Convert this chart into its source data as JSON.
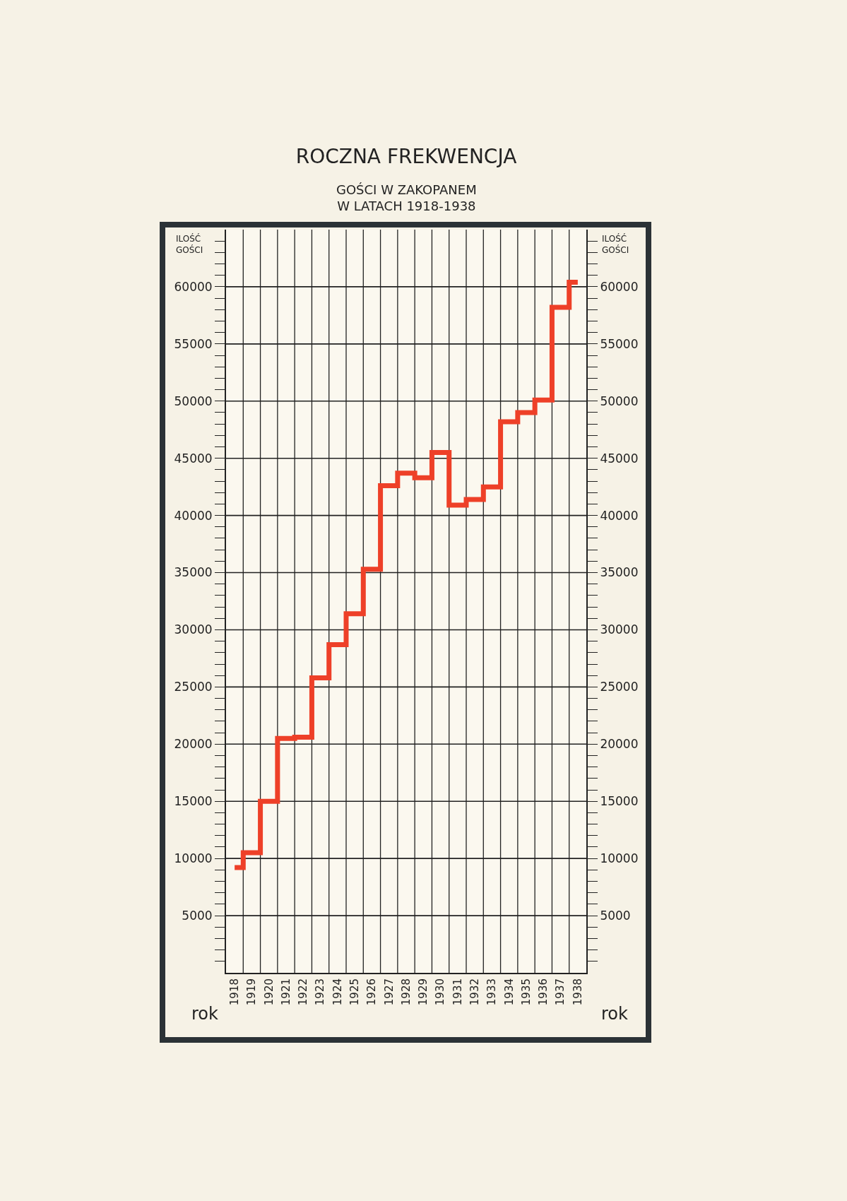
{
  "chart_data": {
    "type": "step",
    "title": "ROCZNA FREKWENCJA",
    "subtitle": "GOŚCI W ZAKOPANEM\nW LATACH 1918-1938",
    "xlabel": "rok",
    "ylabel": "ILOŚĆ GOŚCI",
    "y2label": "ILOŚĆ GOŚCI",
    "categories": [
      "1918",
      "1919",
      "1920",
      "1921",
      "1922",
      "1923",
      "1924",
      "1925",
      "1926",
      "1927",
      "1928",
      "1929",
      "1930",
      "1931",
      "1932",
      "1933",
      "1934",
      "1935",
      "1936",
      "1937",
      "1938"
    ],
    "series": [
      {
        "color": "#ee4028",
        "values": [
          9200,
          10500,
          15000,
          20500,
          20600,
          25800,
          28700,
          31400,
          35300,
          42600,
          43700,
          43300,
          45500,
          40900,
          41400,
          42500,
          48200,
          49000,
          50100,
          58200,
          60400
        ]
      }
    ],
    "ylim": [
      0,
      65000
    ],
    "yticks": [
      {
        "value": 1000,
        "label": null
      },
      {
        "value": 2000,
        "label": null
      },
      {
        "value": 3000,
        "label": null
      },
      {
        "value": 4000,
        "label": null
      },
      5000,
      {
        "value": 6000,
        "label": null
      },
      {
        "value": 7000,
        "label": null
      },
      {
        "value": 8000,
        "label": null
      },
      {
        "value": 9000,
        "label": null
      },
      10000,
      {
        "value": 11000,
        "label": null
      },
      {
        "value": 12000,
        "label": null
      },
      {
        "value": 13000,
        "label": null
      },
      {
        "value": 14000,
        "label": null
      },
      15000,
      {
        "value": 16000,
        "label": null
      },
      {
        "value": 17000,
        "label": null
      },
      {
        "value": 18000,
        "label": null
      },
      {
        "value": 19000,
        "label": null
      },
      20000,
      {
        "value": 21000,
        "label": null
      },
      {
        "value": 22000,
        "label": null
      },
      {
        "value": 23000,
        "label": null
      },
      {
        "value": 24000,
        "label": null
      },
      25000,
      {
        "value": 26000,
        "label": null
      },
      {
        "value": 27000,
        "label": null
      },
      {
        "value": 28000,
        "label": null
      },
      {
        "value": 29000,
        "label": null
      },
      30000,
      {
        "value": 31000,
        "label": null
      },
      {
        "value": 32000,
        "label": null
      },
      {
        "value": 33000,
        "label": null
      },
      {
        "value": 34000,
        "label": null
      },
      35000,
      {
        "value": 36000,
        "label": null
      },
      {
        "value": 37000,
        "label": null
      },
      {
        "value": 38000,
        "label": null
      },
      {
        "value": 39000,
        "label": null
      },
      40000,
      {
        "value": 41000,
        "label": null
      },
      {
        "value": 42000,
        "label": null
      },
      {
        "value": 43000,
        "label": null
      },
      {
        "value": 44000,
        "label": null
      },
      45000,
      {
        "value": 46000,
        "label": null
      },
      {
        "value": 47000,
        "label": null
      },
      {
        "value": 48000,
        "label": null
      },
      {
        "value": 49000,
        "label": null
      },
      50000,
      {
        "value": 51000,
        "label": null
      },
      {
        "value": 52000,
        "label": null
      },
      {
        "value": 53000,
        "label": null
      },
      {
        "value": 54000,
        "label": null
      },
      55000,
      {
        "value": 56000,
        "label": null
      },
      {
        "value": 57000,
        "label": null
      },
      {
        "value": 58000,
        "label": null
      },
      {
        "value": 59000,
        "label": null
      },
      60000,
      {
        "value": 61000,
        "label": null
      },
      {
        "value": 62000,
        "label": null
      },
      {
        "value": 63000,
        "label": null
      },
      {
        "value": 64000,
        "label": null
      }
    ],
    "y2lim": [
      0,
      65000
    ],
    "y2ticks": [
      {
        "value": 1000,
        "label": null
      },
      {
        "value": 2000,
        "label": null
      },
      {
        "value": 3000,
        "label": null
      },
      {
        "value": 4000,
        "label": null
      },
      5000,
      {
        "value": 6000,
        "label": null
      },
      {
        "value": 7000,
        "label": null
      },
      {
        "value": 8000,
        "label": null
      },
      {
        "value": 9000,
        "label": null
      },
      10000,
      {
        "value": 11000,
        "label": null
      },
      {
        "value": 12000,
        "label": null
      },
      {
        "value": 13000,
        "label": null
      },
      {
        "value": 14000,
        "label": null
      },
      15000,
      {
        "value": 16000,
        "label": null
      },
      {
        "value": 17000,
        "label": null
      },
      {
        "value": 18000,
        "label": null
      },
      {
        "value": 19000,
        "label": null
      },
      20000,
      {
        "value": 21000,
        "label": null
      },
      {
        "value": 22000,
        "label": null
      },
      {
        "value": 23000,
        "label": null
      },
      {
        "value": 24000,
        "label": null
      },
      25000,
      {
        "value": 26000,
        "label": null
      },
      {
        "value": 27000,
        "label": null
      },
      {
        "value": 28000,
        "label": null
      },
      {
        "value": 29000,
        "label": null
      },
      30000,
      {
        "value": 31000,
        "label": null
      },
      {
        "value": 32000,
        "label": null
      },
      {
        "value": 33000,
        "label": null
      },
      {
        "value": 34000,
        "label": null
      },
      35000,
      {
        "value": 36000,
        "label": null
      },
      {
        "value": 37000,
        "label": null
      },
      {
        "value": 38000,
        "label": null
      },
      {
        "value": 39000,
        "label": null
      },
      40000,
      {
        "value": 41000,
        "label": null
      },
      {
        "value": 42000,
        "label": null
      },
      {
        "value": 43000,
        "label": null
      },
      {
        "value": 44000,
        "label": null
      },
      45000,
      {
        "value": 46000,
        "label": null
      },
      {
        "value": 47000,
        "label": null
      },
      {
        "value": 48000,
        "label": null
      },
      {
        "value": 49000,
        "label": null
      },
      50000,
      {
        "value": 51000,
        "label": null
      },
      {
        "value": 52000,
        "label": null
      },
      {
        "value": 53000,
        "label": null
      },
      {
        "value": 54000,
        "label": null
      },
      55000,
      {
        "value": 56000,
        "label": null
      },
      {
        "value": 57000,
        "label": null
      },
      {
        "value": 58000,
        "label": null
      },
      {
        "value": 59000,
        "label": null
      },
      60000,
      {
        "value": 61000,
        "label": null
      },
      {
        "value": 62000,
        "label": null
      },
      {
        "value": 63000,
        "label": null
      },
      {
        "value": 64000,
        "label": null
      }
    ],
    "grid": true
  }
}
